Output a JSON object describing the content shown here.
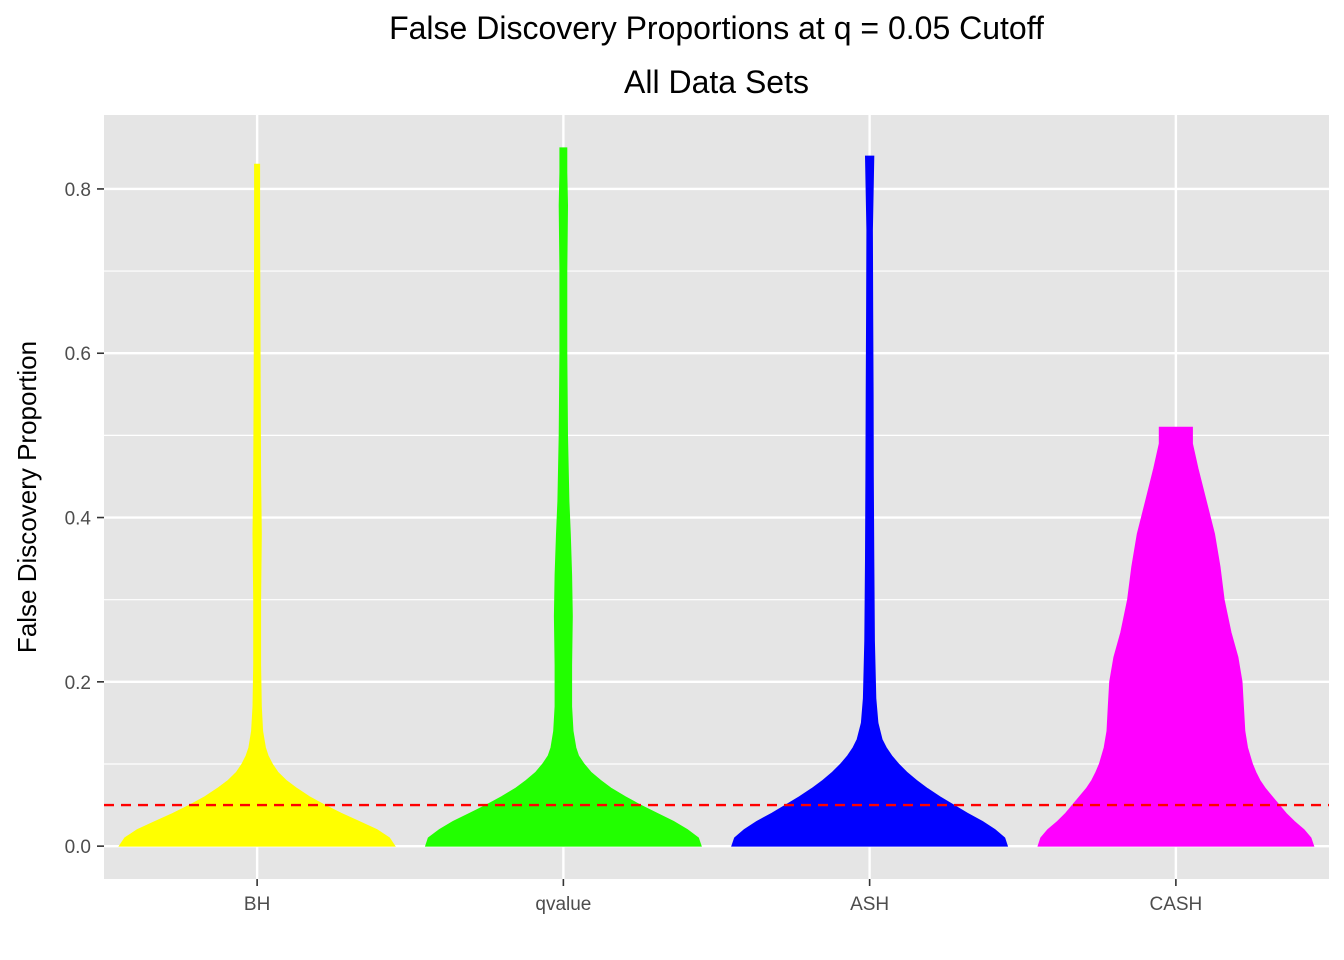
{
  "chart_data": {
    "type": "violin",
    "title": "False Discovery Proportions at q = 0.05 Cutoff",
    "subtitle": "All Data Sets",
    "xlabel": "",
    "ylabel": "False Discovery Proportion",
    "ylim": [
      -0.04,
      0.89
    ],
    "y_ticks": [
      0.0,
      0.2,
      0.4,
      0.6,
      0.8
    ],
    "y_tick_labels": [
      "0.0",
      "0.2",
      "0.4",
      "0.6",
      "0.8"
    ],
    "categories": [
      "BH",
      "qvalue",
      "ASH",
      "CASH"
    ],
    "reference_line": {
      "y": 0.05,
      "color": "#ff0000",
      "style": "dashed"
    },
    "grid": true,
    "violins": [
      {
        "name": "BH",
        "color": "#ffff00",
        "min": 0.0,
        "max": 0.83,
        "profile": [
          [
            0.0,
            1.0
          ],
          [
            0.01,
            0.96
          ],
          [
            0.02,
            0.87
          ],
          [
            0.03,
            0.74
          ],
          [
            0.04,
            0.61
          ],
          [
            0.05,
            0.49
          ],
          [
            0.06,
            0.38
          ],
          [
            0.07,
            0.29
          ],
          [
            0.08,
            0.21
          ],
          [
            0.09,
            0.15
          ],
          [
            0.1,
            0.11
          ],
          [
            0.11,
            0.08
          ],
          [
            0.12,
            0.06
          ],
          [
            0.14,
            0.04
          ],
          [
            0.17,
            0.03
          ],
          [
            0.22,
            0.025
          ],
          [
            0.3,
            0.025
          ],
          [
            0.38,
            0.03
          ],
          [
            0.45,
            0.025
          ],
          [
            0.55,
            0.022
          ],
          [
            0.65,
            0.02
          ],
          [
            0.75,
            0.018
          ],
          [
            0.83,
            0.018
          ]
        ]
      },
      {
        "name": "qvalue",
        "color": "#22ff00",
        "min": 0.0,
        "max": 0.85,
        "profile": [
          [
            0.0,
            1.0
          ],
          [
            0.01,
            0.98
          ],
          [
            0.02,
            0.9
          ],
          [
            0.03,
            0.8
          ],
          [
            0.04,
            0.68
          ],
          [
            0.05,
            0.56
          ],
          [
            0.06,
            0.45
          ],
          [
            0.07,
            0.35
          ],
          [
            0.08,
            0.27
          ],
          [
            0.09,
            0.2
          ],
          [
            0.1,
            0.15
          ],
          [
            0.11,
            0.11
          ],
          [
            0.12,
            0.09
          ],
          [
            0.14,
            0.07
          ],
          [
            0.17,
            0.06
          ],
          [
            0.22,
            0.06
          ],
          [
            0.28,
            0.065
          ],
          [
            0.33,
            0.06
          ],
          [
            0.38,
            0.05
          ],
          [
            0.42,
            0.04
          ],
          [
            0.5,
            0.03
          ],
          [
            0.6,
            0.025
          ],
          [
            0.7,
            0.025
          ],
          [
            0.78,
            0.03
          ],
          [
            0.82,
            0.025
          ],
          [
            0.85,
            0.025
          ]
        ]
      },
      {
        "name": "ASH",
        "color": "#0000ff",
        "min": 0.0,
        "max": 0.84,
        "profile": [
          [
            0.0,
            1.0
          ],
          [
            0.01,
            0.98
          ],
          [
            0.02,
            0.91
          ],
          [
            0.03,
            0.82
          ],
          [
            0.04,
            0.71
          ],
          [
            0.05,
            0.61
          ],
          [
            0.06,
            0.51
          ],
          [
            0.07,
            0.42
          ],
          [
            0.08,
            0.34
          ],
          [
            0.09,
            0.27
          ],
          [
            0.1,
            0.21
          ],
          [
            0.11,
            0.16
          ],
          [
            0.12,
            0.12
          ],
          [
            0.13,
            0.09
          ],
          [
            0.15,
            0.06
          ],
          [
            0.18,
            0.045
          ],
          [
            0.25,
            0.035
          ],
          [
            0.35,
            0.03
          ],
          [
            0.45,
            0.027
          ],
          [
            0.55,
            0.025
          ],
          [
            0.65,
            0.022
          ],
          [
            0.75,
            0.02
          ],
          [
            0.84,
            0.03
          ]
        ]
      },
      {
        "name": "CASH",
        "color": "#ff00ff",
        "min": 0.0,
        "max": 0.51,
        "profile": [
          [
            0.0,
            1.0
          ],
          [
            0.01,
            0.98
          ],
          [
            0.02,
            0.93
          ],
          [
            0.03,
            0.86
          ],
          [
            0.04,
            0.8
          ],
          [
            0.05,
            0.75
          ],
          [
            0.06,
            0.7
          ],
          [
            0.07,
            0.65
          ],
          [
            0.08,
            0.61
          ],
          [
            0.09,
            0.58
          ],
          [
            0.1,
            0.555
          ],
          [
            0.12,
            0.52
          ],
          [
            0.14,
            0.5
          ],
          [
            0.17,
            0.49
          ],
          [
            0.2,
            0.48
          ],
          [
            0.23,
            0.45
          ],
          [
            0.26,
            0.4
          ],
          [
            0.3,
            0.35
          ],
          [
            0.34,
            0.32
          ],
          [
            0.38,
            0.28
          ],
          [
            0.42,
            0.22
          ],
          [
            0.46,
            0.16
          ],
          [
            0.49,
            0.12
          ],
          [
            0.51,
            0.12
          ]
        ]
      }
    ]
  }
}
